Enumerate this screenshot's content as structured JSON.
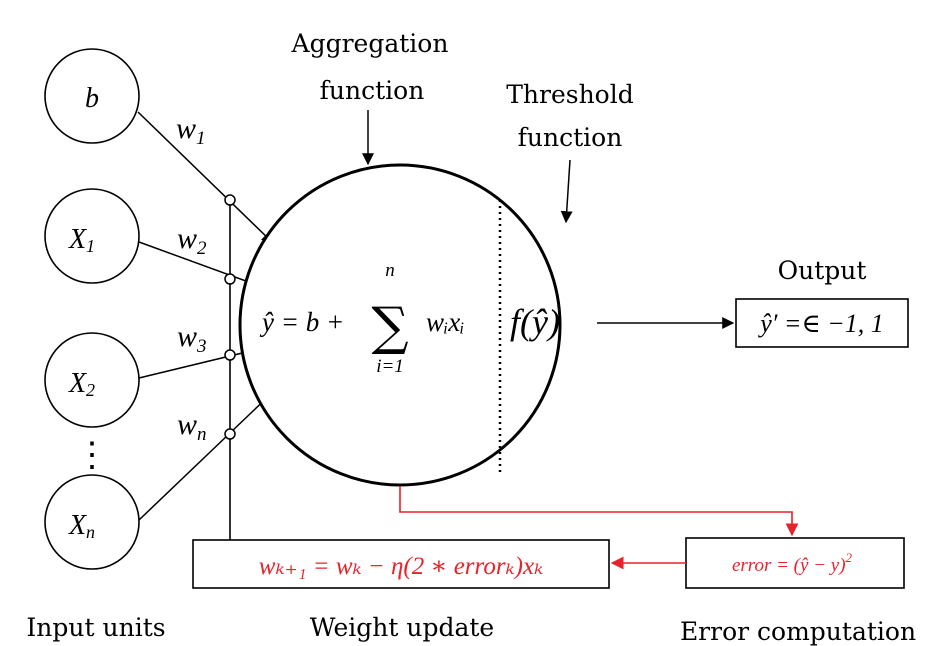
{
  "colors": {
    "ink": "#000000",
    "error": "#e8222a",
    "background": "#ffffff"
  },
  "inputs": {
    "bias": "b",
    "x1": {
      "base": "X",
      "sub": "1"
    },
    "x2": {
      "base": "X",
      "sub": "2"
    },
    "xn": {
      "base": "X",
      "sub": "n"
    },
    "ellipsis": "⋮"
  },
  "weights": {
    "w1": {
      "base": "w",
      "sub": "1"
    },
    "w2": {
      "base": "w",
      "sub": "2"
    },
    "w3": {
      "base": "w",
      "sub": "3"
    },
    "wn": {
      "base": "w",
      "sub": "n"
    }
  },
  "labels": {
    "aggregation_line1": "Aggregation",
    "aggregation_line2": "function",
    "threshold_line1": "Threshold",
    "threshold_line2": "function",
    "output": "Output",
    "input_units": "Input units",
    "weight_update": "Weight update",
    "error_computation": "Error computation"
  },
  "neuron": {
    "aggregation": {
      "lhs": "ŷ = b + ",
      "sum_top": "n",
      "sum_symbol": "∑",
      "sum_bottom": "i=1",
      "term": "wᵢxᵢ"
    },
    "threshold": "f(ŷ)"
  },
  "output_box": "ŷ′ =∈ −1, 1",
  "weight_update_formula": "wₖ₊₁ = wₖ − η(2 ∗ errorₖ)xₖ",
  "error_formula": {
    "text": "error = (ŷ − y)",
    "sup": "2"
  }
}
